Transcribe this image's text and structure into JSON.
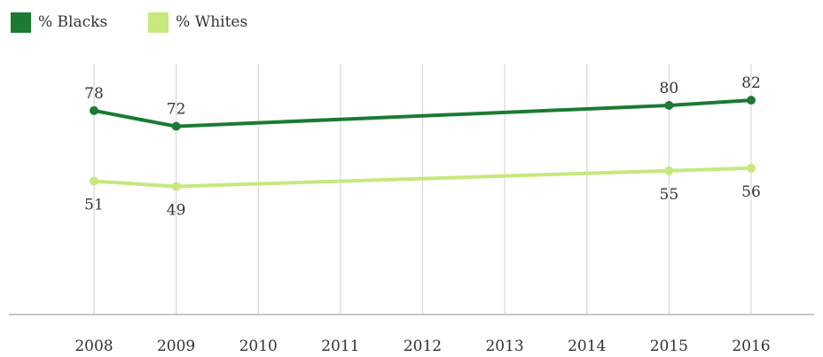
{
  "chart_data": {
    "type": "line",
    "x": [
      "2008",
      "2009",
      "2010",
      "2011",
      "2012",
      "2013",
      "2014",
      "2015",
      "2016"
    ],
    "series": [
      {
        "name": "% Blacks",
        "color": "#1b7a34",
        "points": [
          {
            "x": "2008",
            "y": 78
          },
          {
            "x": "2009",
            "y": 72
          },
          {
            "x": "2015",
            "y": 80
          },
          {
            "x": "2016",
            "y": 82
          }
        ]
      },
      {
        "name": "% Whites",
        "color": "#c6e87d",
        "points": [
          {
            "x": "2008",
            "y": 51
          },
          {
            "x": "2009",
            "y": 49
          },
          {
            "x": "2015",
            "y": 55
          },
          {
            "x": "2016",
            "y": 56
          }
        ]
      }
    ],
    "ylim": [
      0,
      100
    ],
    "grid": "vertical",
    "legend_position": "top-left"
  }
}
